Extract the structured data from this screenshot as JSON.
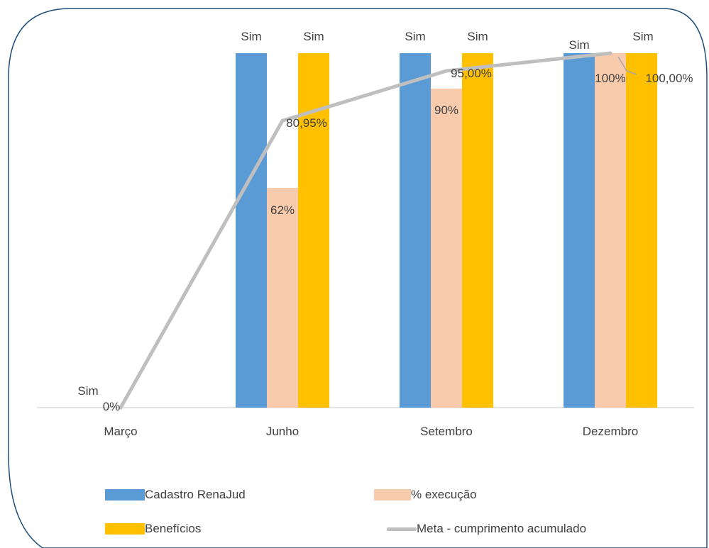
{
  "chart_data": {
    "type": "bar",
    "categories": [
      "Março",
      "Junho",
      "Setembro",
      "Dezembro"
    ],
    "series": [
      {
        "name": "Cadastro RenaJud",
        "kind": "bar",
        "color": "#5B9BD5",
        "values": [
          0,
          1,
          1,
          1
        ],
        "labels": [
          "Sim",
          "Sim",
          "Sim",
          "Sim"
        ]
      },
      {
        "name": "% execução",
        "kind": "bar",
        "color": "#F8CBAD",
        "values": [
          0,
          0.62,
          0.9,
          1.0
        ],
        "labels": [
          "",
          "62%",
          "90%",
          "100%"
        ]
      },
      {
        "name": "Benefícios",
        "kind": "bar",
        "color": "#FFC000",
        "values": [
          0,
          1,
          1,
          1
        ],
        "labels": [
          "",
          "Sim",
          "Sim",
          "Sim"
        ]
      },
      {
        "name": "Meta - cumprimento acumulado",
        "kind": "line",
        "color": "#BFBFBF",
        "values": [
          0,
          0.8095,
          0.95,
          1.0
        ],
        "labels": [
          "0%",
          "80,95%",
          "95,00%",
          "100,00%"
        ]
      }
    ],
    "ylim": [
      0,
      1
    ],
    "grid": false,
    "legend_position": "bottom"
  }
}
